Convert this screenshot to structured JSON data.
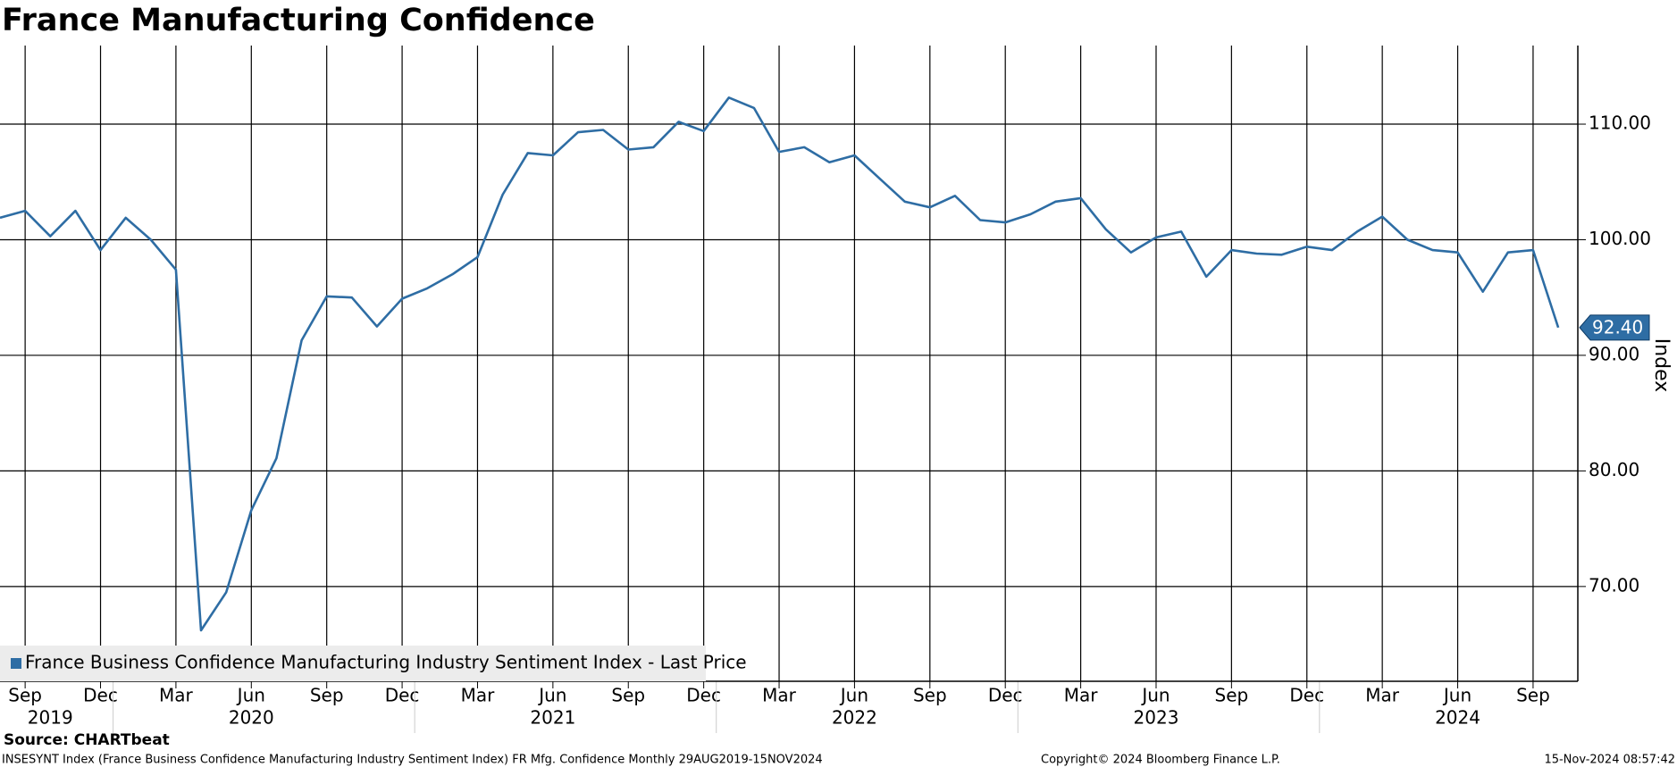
{
  "chart_data": {
    "type": "line",
    "title": "France Manufacturing Confidence",
    "y_axis_label": "Index",
    "x": [
      "2019-08",
      "2019-09",
      "2019-10",
      "2019-11",
      "2019-12",
      "2020-01",
      "2020-02",
      "2020-03",
      "2020-04",
      "2020-05",
      "2020-06",
      "2020-07",
      "2020-08",
      "2020-09",
      "2020-10",
      "2020-11",
      "2020-12",
      "2021-01",
      "2021-02",
      "2021-03",
      "2021-04",
      "2021-05",
      "2021-06",
      "2021-07",
      "2021-08",
      "2021-09",
      "2021-10",
      "2021-11",
      "2021-12",
      "2022-01",
      "2022-02",
      "2022-03",
      "2022-04",
      "2022-05",
      "2022-06",
      "2022-07",
      "2022-08",
      "2022-09",
      "2022-10",
      "2022-11",
      "2022-12",
      "2023-01",
      "2023-02",
      "2023-03",
      "2023-04",
      "2023-05",
      "2023-06",
      "2023-07",
      "2023-08",
      "2023-09",
      "2023-10",
      "2023-11",
      "2023-12",
      "2024-01",
      "2024-02",
      "2024-03",
      "2024-04",
      "2024-05",
      "2024-06",
      "2024-07",
      "2024-08",
      "2024-09",
      "2024-10"
    ],
    "series": [
      {
        "name": "France Business Confidence Manufacturing Industry Sentiment Index - Last Price",
        "color": "#2e6da4",
        "values": [
          101.9,
          102.5,
          100.3,
          102.5,
          99.1,
          101.9,
          100.0,
          97.4,
          66.2,
          69.5,
          76.6,
          81.1,
          91.3,
          95.1,
          95.0,
          92.5,
          94.9,
          95.8,
          97.0,
          98.5,
          103.9,
          107.5,
          107.3,
          109.3,
          109.5,
          107.8,
          108.0,
          110.2,
          109.4,
          112.3,
          111.4,
          107.6,
          108.0,
          106.7,
          107.3,
          105.3,
          103.3,
          102.8,
          103.8,
          101.7,
          101.5,
          102.2,
          103.3,
          103.6,
          100.9,
          98.9,
          100.2,
          100.7,
          96.8,
          99.1,
          98.8,
          98.7,
          99.4,
          99.1,
          100.7,
          102.0,
          100.0,
          99.1,
          98.9,
          95.5,
          98.9,
          99.1,
          92.4
        ],
        "value_labels": [
          null,
          null,
          null,
          null,
          null,
          null,
          null,
          null,
          null,
          null,
          null,
          null,
          null,
          null,
          null,
          null,
          null,
          null,
          null,
          null,
          null,
          null,
          null,
          null,
          null,
          null,
          null,
          null,
          null,
          null,
          null,
          null,
          null,
          null,
          null,
          null,
          null,
          null,
          null,
          null,
          null,
          null,
          null,
          null,
          null,
          null,
          null,
          null,
          null,
          null,
          null,
          null,
          null,
          null,
          null,
          null,
          null,
          null,
          null,
          null,
          null,
          null,
          "92.40"
        ]
      }
    ],
    "ylim": [
      61.8,
      116.8
    ],
    "yticks": [
      {
        "value": 70,
        "label": "70.00"
      },
      {
        "value": 80,
        "label": "80.00"
      },
      {
        "value": 90,
        "label": "90.00"
      },
      {
        "value": 100,
        "label": "100.00"
      },
      {
        "value": 110,
        "label": "110.00"
      }
    ],
    "xticks": [
      {
        "value": "2019-09",
        "label": "Sep"
      },
      {
        "value": "2019-12",
        "label": "Dec"
      },
      {
        "value": "2020-03",
        "label": "Mar"
      },
      {
        "value": "2020-06",
        "label": "Jun"
      },
      {
        "value": "2020-09",
        "label": "Sep"
      },
      {
        "value": "2020-12",
        "label": "Dec"
      },
      {
        "value": "2021-03",
        "label": "Mar"
      },
      {
        "value": "2021-06",
        "label": "Jun"
      },
      {
        "value": "2021-09",
        "label": "Sep"
      },
      {
        "value": "2021-12",
        "label": "Dec"
      },
      {
        "value": "2022-03",
        "label": "Mar"
      },
      {
        "value": "2022-06",
        "label": "Jun"
      },
      {
        "value": "2022-09",
        "label": "Sep"
      },
      {
        "value": "2022-12",
        "label": "Dec"
      },
      {
        "value": "2023-03",
        "label": "Mar"
      },
      {
        "value": "2023-06",
        "label": "Jun"
      },
      {
        "value": "2023-09",
        "label": "Sep"
      },
      {
        "value": "2023-12",
        "label": "Dec"
      },
      {
        "value": "2024-03",
        "label": "Mar"
      },
      {
        "value": "2024-06",
        "label": "Jun"
      },
      {
        "value": "2024-09",
        "label": "Sep"
      }
    ],
    "year_labels": [
      {
        "value": "2019-10",
        "label": "2019"
      },
      {
        "value": "2020-06",
        "label": "2020"
      },
      {
        "value": "2021-06",
        "label": "2021"
      },
      {
        "value": "2022-06",
        "label": "2022"
      },
      {
        "value": "2023-06",
        "label": "2023"
      },
      {
        "value": "2024-06",
        "label": "2024"
      }
    ],
    "grid": true,
    "legend": "bottom-left",
    "footer": {
      "source": "Source: CHARTbeat",
      "info": "INSESYNT Index (France Business Confidence Manufacturing Industry Sentiment Index) FR Mfg. Confidence  Monthly 29AUG2019-15NOV2024",
      "copyright": "Copyright© 2024 Bloomberg Finance L.P.",
      "timestamp": "15-Nov-2024 08:57:42"
    }
  }
}
